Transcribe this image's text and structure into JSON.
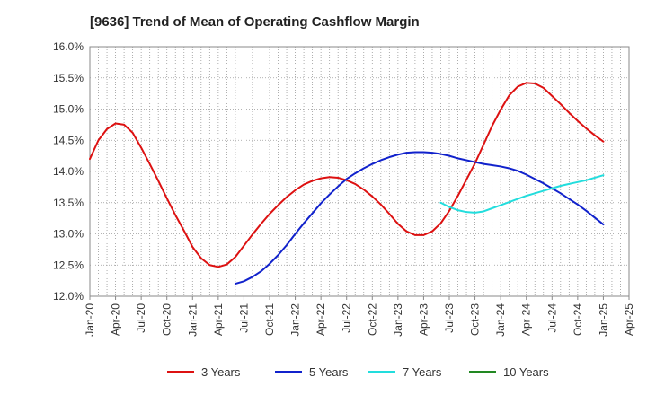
{
  "chart_data": {
    "type": "line",
    "title": "[9636]  Trend of Mean of Operating Cashflow Margin",
    "xlabel": "",
    "ylabel": "",
    "y_unit": "%",
    "ylim": [
      12.0,
      16.0
    ],
    "y_ticks": [
      12.0,
      12.5,
      13.0,
      13.5,
      14.0,
      14.5,
      15.0,
      15.5,
      16.0
    ],
    "y_tick_labels": [
      "12.0%",
      "12.5%",
      "13.0%",
      "13.5%",
      "14.0%",
      "14.5%",
      "15.0%",
      "15.5%",
      "16.0%"
    ],
    "x_ticks": [
      "Jan-20",
      "Apr-20",
      "Jul-20",
      "Oct-20",
      "Jan-21",
      "Apr-21",
      "Jul-21",
      "Oct-21",
      "Jan-22",
      "Apr-22",
      "Jul-22",
      "Oct-22",
      "Jan-23",
      "Apr-23",
      "Jul-23",
      "Oct-23",
      "Jan-24",
      "Apr-24",
      "Jul-24",
      "Oct-24",
      "Jan-25",
      "Apr-25"
    ],
    "x_range": [
      "2020-01",
      "2025-04"
    ],
    "grid": true,
    "legend_position": "bottom",
    "series": [
      {
        "name": "3 Years",
        "color": "#dd1111",
        "points": [
          [
            "2020-01",
            14.2
          ],
          [
            "2020-02",
            14.5
          ],
          [
            "2020-03",
            14.68
          ],
          [
            "2020-04",
            14.77
          ],
          [
            "2020-05",
            14.75
          ],
          [
            "2020-06",
            14.62
          ],
          [
            "2020-07",
            14.38
          ],
          [
            "2020-08",
            14.12
          ],
          [
            "2020-09",
            13.85
          ],
          [
            "2020-10",
            13.57
          ],
          [
            "2020-11",
            13.3
          ],
          [
            "2020-12",
            13.05
          ],
          [
            "2021-01",
            12.79
          ],
          [
            "2021-02",
            12.61
          ],
          [
            "2021-03",
            12.5
          ],
          [
            "2021-04",
            12.47
          ],
          [
            "2021-05",
            12.51
          ],
          [
            "2021-06",
            12.63
          ],
          [
            "2021-07",
            12.81
          ],
          [
            "2021-08",
            12.99
          ],
          [
            "2021-09",
            13.16
          ],
          [
            "2021-10",
            13.32
          ],
          [
            "2021-11",
            13.46
          ],
          [
            "2021-12",
            13.59
          ],
          [
            "2022-01",
            13.7
          ],
          [
            "2022-02",
            13.79
          ],
          [
            "2022-03",
            13.85
          ],
          [
            "2022-04",
            13.89
          ],
          [
            "2022-05",
            13.91
          ],
          [
            "2022-06",
            13.9
          ],
          [
            "2022-07",
            13.86
          ],
          [
            "2022-08",
            13.8
          ],
          [
            "2022-09",
            13.71
          ],
          [
            "2022-10",
            13.6
          ],
          [
            "2022-11",
            13.47
          ],
          [
            "2022-12",
            13.32
          ],
          [
            "2023-01",
            13.16
          ],
          [
            "2023-02",
            13.04
          ],
          [
            "2023-03",
            12.98
          ],
          [
            "2023-04",
            12.98
          ],
          [
            "2023-05",
            13.04
          ],
          [
            "2023-06",
            13.17
          ],
          [
            "2023-07",
            13.37
          ],
          [
            "2023-08",
            13.61
          ],
          [
            "2023-09",
            13.87
          ],
          [
            "2023-10",
            14.13
          ],
          [
            "2023-11",
            14.43
          ],
          [
            "2023-12",
            14.73
          ],
          [
            "2024-01",
            14.99
          ],
          [
            "2024-02",
            15.22
          ],
          [
            "2024-03",
            15.36
          ],
          [
            "2024-04",
            15.42
          ],
          [
            "2024-05",
            15.41
          ],
          [
            "2024-06",
            15.34
          ],
          [
            "2024-07",
            15.21
          ],
          [
            "2024-08",
            15.08
          ],
          [
            "2024-09",
            14.94
          ],
          [
            "2024-10",
            14.81
          ],
          [
            "2024-11",
            14.69
          ],
          [
            "2024-12",
            14.58
          ],
          [
            "2025-01",
            14.48
          ]
        ]
      },
      {
        "name": "5 Years",
        "color": "#1122cc",
        "points": [
          [
            "2021-06",
            12.2
          ],
          [
            "2021-07",
            12.24
          ],
          [
            "2021-08",
            12.31
          ],
          [
            "2021-09",
            12.4
          ],
          [
            "2021-10",
            12.52
          ],
          [
            "2021-11",
            12.66
          ],
          [
            "2021-12",
            12.82
          ],
          [
            "2022-01",
            13.0
          ],
          [
            "2022-02",
            13.17
          ],
          [
            "2022-03",
            13.33
          ],
          [
            "2022-04",
            13.49
          ],
          [
            "2022-05",
            13.63
          ],
          [
            "2022-06",
            13.76
          ],
          [
            "2022-07",
            13.88
          ],
          [
            "2022-08",
            13.97
          ],
          [
            "2022-09",
            14.05
          ],
          [
            "2022-10",
            14.12
          ],
          [
            "2022-11",
            14.18
          ],
          [
            "2022-12",
            14.23
          ],
          [
            "2023-01",
            14.27
          ],
          [
            "2023-02",
            14.3
          ],
          [
            "2023-03",
            14.31
          ],
          [
            "2023-04",
            14.31
          ],
          [
            "2023-05",
            14.3
          ],
          [
            "2023-06",
            14.28
          ],
          [
            "2023-07",
            14.25
          ],
          [
            "2023-08",
            14.21
          ],
          [
            "2023-09",
            14.18
          ],
          [
            "2023-10",
            14.15
          ],
          [
            "2023-11",
            14.12
          ],
          [
            "2023-12",
            14.1
          ],
          [
            "2024-01",
            14.08
          ],
          [
            "2024-02",
            14.05
          ],
          [
            "2024-03",
            14.01
          ],
          [
            "2024-04",
            13.95
          ],
          [
            "2024-05",
            13.88
          ],
          [
            "2024-06",
            13.81
          ],
          [
            "2024-07",
            13.73
          ],
          [
            "2024-08",
            13.65
          ],
          [
            "2024-09",
            13.56
          ],
          [
            "2024-10",
            13.47
          ],
          [
            "2024-11",
            13.37
          ],
          [
            "2024-12",
            13.26
          ],
          [
            "2025-01",
            13.15
          ]
        ]
      },
      {
        "name": "7 Years",
        "color": "#22dddd",
        "points": [
          [
            "2023-06",
            13.5
          ],
          [
            "2023-07",
            13.43
          ],
          [
            "2023-08",
            13.38
          ],
          [
            "2023-09",
            13.35
          ],
          [
            "2023-10",
            13.34
          ],
          [
            "2023-11",
            13.36
          ],
          [
            "2023-12",
            13.41
          ],
          [
            "2024-01",
            13.46
          ],
          [
            "2024-02",
            13.51
          ],
          [
            "2024-03",
            13.56
          ],
          [
            "2024-04",
            13.61
          ],
          [
            "2024-05",
            13.65
          ],
          [
            "2024-06",
            13.69
          ],
          [
            "2024-07",
            13.73
          ],
          [
            "2024-08",
            13.77
          ],
          [
            "2024-09",
            13.8
          ],
          [
            "2024-10",
            13.83
          ],
          [
            "2024-11",
            13.86
          ],
          [
            "2024-12",
            13.9
          ],
          [
            "2025-01",
            13.94
          ]
        ]
      },
      {
        "name": "10 Years",
        "color": "#228822",
        "points": []
      }
    ]
  }
}
